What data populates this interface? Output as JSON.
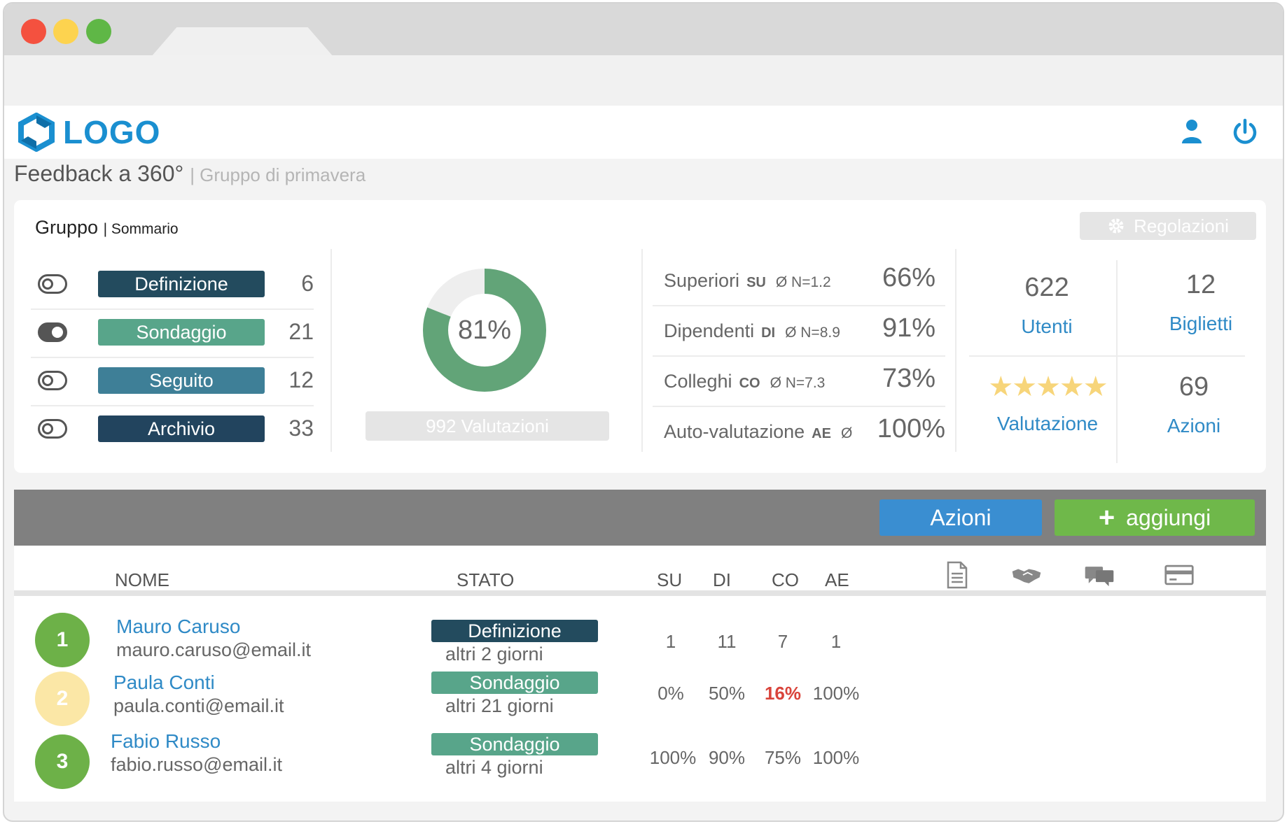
{
  "header": {
    "logo_text": "LOGO"
  },
  "page": {
    "title": "Feedback a 360°",
    "subtitle": "| Gruppo di primavera"
  },
  "summary": {
    "title": "Gruppo",
    "title_small": "| Sommario",
    "settings_label": "Regolazioni",
    "statuses": [
      {
        "label": "Definizione",
        "count": "6",
        "color": "#234b5e",
        "toggle_on": false
      },
      {
        "label": "Sondaggio",
        "count": "21",
        "color": "#58a58a",
        "toggle_on": true
      },
      {
        "label": "Seguito",
        "count": "12",
        "color": "#3e7f97",
        "toggle_on": false
      },
      {
        "label": "Archivio",
        "count": "33",
        "color": "#22445e",
        "toggle_on": false
      }
    ],
    "donut": {
      "percent_label": "81%",
      "value": 0.81,
      "fill_color": "#62a478",
      "track_color": "#eeeeee"
    },
    "evaluations_label": "992 Valutazioni",
    "raters": [
      {
        "name": "Superiori",
        "code": "SU",
        "n": "Ø  N=1.2",
        "pct": "66%"
      },
      {
        "name": "Dipendenti",
        "code": "DI",
        "n": "Ø  N=8.9",
        "pct": "91%"
      },
      {
        "name": "Colleghi",
        "code": "CO",
        "n": "Ø  N=7.3",
        "pct": "73%"
      },
      {
        "name": "Auto-valutazione",
        "code": "AE",
        "n": "Ø",
        "pct": "100%"
      }
    ],
    "stats": {
      "users_num": "622",
      "users_label": "Utenti",
      "tickets_num": "12",
      "tickets_label": "Biglietti",
      "rating_stars": "★★★★★",
      "rating_value": 5,
      "rating_max": 5,
      "rating_label": "Valutazione",
      "actions_num": "69",
      "actions_label": "Azioni"
    }
  },
  "toolbar": {
    "actions_label": "Azioni",
    "add_plus": "+",
    "add_label": "aggiungi"
  },
  "table": {
    "headers": {
      "name": "NOME",
      "status": "STATO",
      "su": "SU",
      "di": "DI",
      "co": "CO",
      "ae": "AE"
    },
    "header_icons": [
      "document-icon",
      "handshake-icon",
      "chat-icon",
      "card-icon"
    ],
    "rows": [
      {
        "num": "1",
        "avatar_color": "#6db148",
        "name": "Mauro Caruso",
        "email": "mauro.caruso@email.it",
        "status": "Definizione",
        "status_color": "#234b5e",
        "remaining": "altri 2 giorni",
        "su": "1",
        "di": "11",
        "co": "7",
        "ae": "1",
        "co_alert": false
      },
      {
        "num": "2",
        "avatar_color": "#fbe7a6",
        "name": "Paula Conti",
        "email": "paula.conti@email.it",
        "status": "Sondaggio",
        "status_color": "#58a58a",
        "remaining": "altri 21 giorni",
        "su": "0%",
        "di": "50%",
        "co": "16%",
        "ae": "100%",
        "co_alert": true
      },
      {
        "num": "3",
        "avatar_color": "#6db148",
        "name": "Fabio Russo",
        "email": "fabio.russo@email.it",
        "status": "Sondaggio",
        "status_color": "#58a58a",
        "remaining": "altri 4 giorni",
        "su": "100%",
        "di": "90%",
        "co": "75%",
        "ae": "100%",
        "co_alert": false
      }
    ]
  }
}
